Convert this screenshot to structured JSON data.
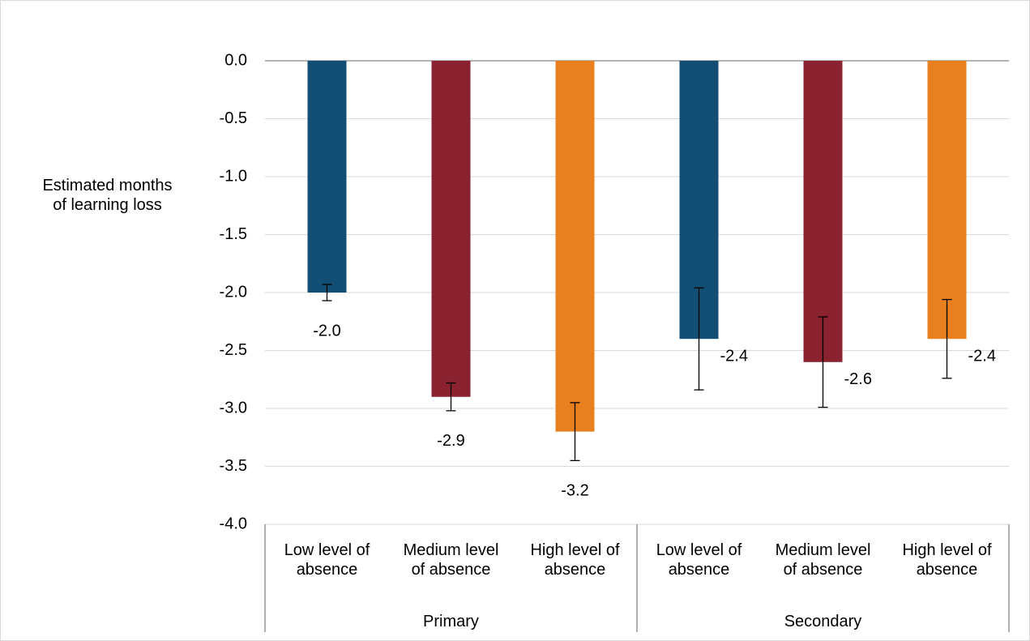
{
  "chart_data": {
    "type": "bar",
    "y_axis_label": "Estimated months of learning loss",
    "categories": [
      "Low level of absence",
      "Medium level of absence",
      "High level of absence",
      "Low level of absence",
      "Medium level of absence",
      "High level of absence"
    ],
    "groups": [
      "Primary",
      "Secondary"
    ],
    "values": [
      -2.0,
      -2.9,
      -3.2,
      -2.4,
      -2.6,
      -2.4
    ],
    "value_labels": [
      "-2.0",
      "-2.9",
      "-3.2",
      "-2.4",
      "-2.6",
      "-2.4"
    ],
    "errors": [
      0.07,
      0.12,
      0.25,
      0.44,
      0.39,
      0.34
    ],
    "colors": [
      "#134f74",
      "#8b2230",
      "#e8801f",
      "#134f74",
      "#8b2230",
      "#e8801f"
    ],
    "ylim": [
      -4.0,
      0.0
    ],
    "yticks": [
      {
        "value": 0,
        "label": "0.0"
      },
      {
        "value": -0.5,
        "label": "-0.5"
      },
      {
        "value": -1,
        "label": "-1.0"
      },
      {
        "value": -1.5,
        "label": "-1.5"
      },
      {
        "value": -2,
        "label": "-2.0"
      },
      {
        "value": -2.5,
        "label": "-2.5"
      },
      {
        "value": -3,
        "label": "-3.0"
      },
      {
        "value": -3.5,
        "label": "-3.5"
      },
      {
        "value": -4,
        "label": "-4.0"
      }
    ],
    "grid": true
  }
}
